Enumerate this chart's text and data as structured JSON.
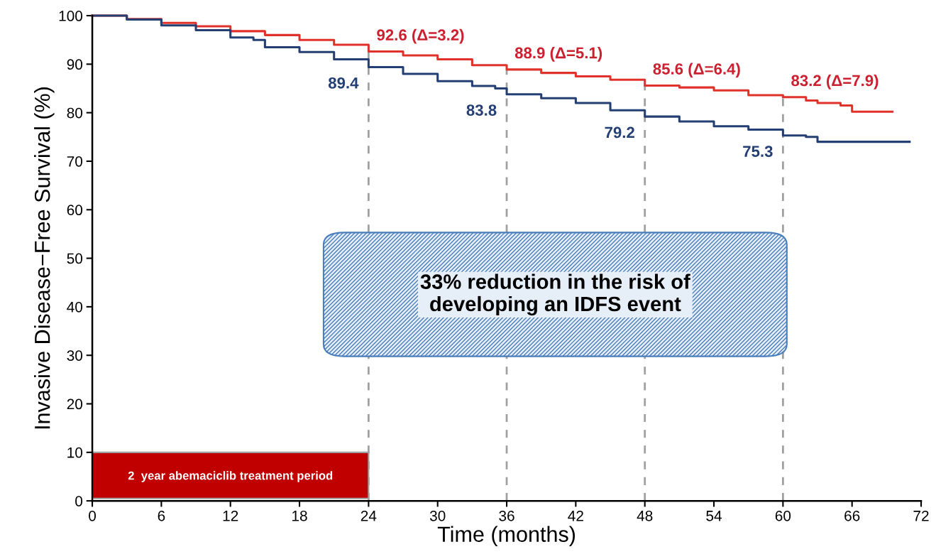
{
  "chart_data": {
    "type": "step",
    "ylabel": "Invasive Disease−Free Survival (%)",
    "xlabel": "Time (months)",
    "xlim": [
      0,
      72
    ],
    "xticks": [
      0,
      6,
      12,
      18,
      24,
      30,
      36,
      42,
      48,
      54,
      60,
      66,
      72
    ],
    "ylim": [
      0,
      100
    ],
    "yticks": [
      0,
      10,
      20,
      30,
      40,
      50,
      60,
      70,
      80,
      90,
      100
    ],
    "grid": false,
    "marker": "none",
    "line_style": "solid",
    "series": [
      {
        "color": "#e0322b",
        "x": [
          0,
          3,
          6,
          9,
          12,
          15,
          18,
          21,
          24,
          27,
          30,
          33,
          36,
          39,
          42,
          45,
          48,
          51,
          54,
          57,
          60,
          62,
          63,
          65,
          66,
          69.5
        ],
        "values": [
          100,
          99.3,
          98.5,
          97.8,
          96.8,
          96,
          95,
          94,
          92.6,
          91.8,
          91,
          89.8,
          88.9,
          88.2,
          87.5,
          86.8,
          85.6,
          85.2,
          84.6,
          83.6,
          83.2,
          82.5,
          82,
          81.5,
          80.2,
          80.2
        ]
      },
      {
        "color": "#243f73",
        "x": [
          0,
          3,
          6,
          9,
          12,
          14,
          15,
          18,
          21,
          24,
          27,
          30,
          33,
          35,
          36,
          39,
          42,
          45,
          48,
          51,
          54,
          57,
          60,
          62,
          63,
          66,
          71
        ],
        "values": [
          100,
          99.2,
          98,
          97,
          95.5,
          95,
          93.5,
          92.5,
          91,
          89.4,
          88,
          86.5,
          85.5,
          85,
          83.8,
          83,
          82,
          80.5,
          79.2,
          78.2,
          77.2,
          76.5,
          75.3,
          75,
          74,
          74,
          74
        ]
      }
    ],
    "ref_lines": [
      {
        "axis": "x",
        "value": 24,
        "color": "#a0a0a0",
        "line_style": "dashed"
      },
      {
        "axis": "x",
        "value": 36,
        "color": "#a0a0a0",
        "line_style": "dashed"
      },
      {
        "axis": "x",
        "value": 48,
        "color": "#a0a0a0",
        "line_style": "dashed"
      },
      {
        "axis": "x",
        "value": 60,
        "color": "#a0a0a0",
        "line_style": "dashed"
      }
    ],
    "bands": [
      {
        "axis": "x",
        "from": 0,
        "to": 24,
        "label": "2  year abemaciclib treatment period",
        "color": "#c00000"
      }
    ],
    "annotations": [
      {
        "text": "92.6 (Δ=3.2)",
        "x": 24,
        "y": 92.6
      },
      {
        "text": "88.9 (Δ=5.1)",
        "x": 36,
        "y": 88.9
      },
      {
        "text": "85.6 (Δ=6.4)",
        "x": 48,
        "y": 85.6
      },
      {
        "text": "83.2 (Δ=7.9)",
        "x": 60,
        "y": 83.2
      },
      {
        "text": "89.4",
        "x": 24,
        "y": 89.4
      },
      {
        "text": "83.8",
        "x": 36,
        "y": 83.8
      },
      {
        "text": "79.2",
        "x": 48,
        "y": 79.2
      },
      {
        "text": "75.3",
        "x": 60,
        "y": 75.3
      },
      "33% reduction in the risk of developing an IDFS event"
    ]
  }
}
